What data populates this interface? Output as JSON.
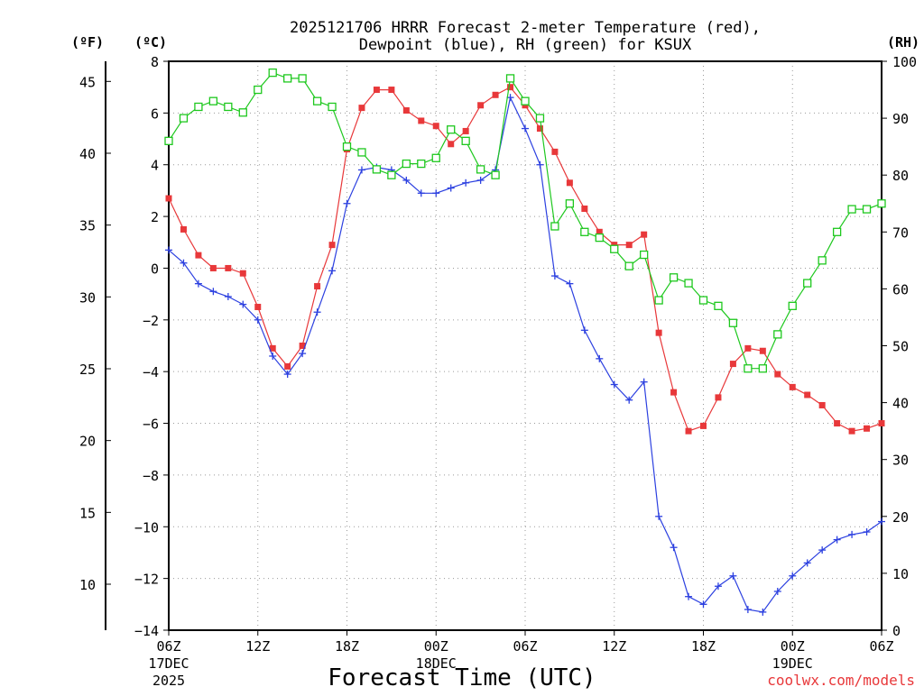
{
  "chart_data": {
    "type": "line",
    "title_line1": "2025121706 HRRR Forecast 2-meter Temperature (red),",
    "title_line2": "Dewpoint (blue), RH (green) for KSUX",
    "xlabel": "Forecast Time (UTC)",
    "left_unit_f": "(ºF)",
    "left_unit_c": "(ºC)",
    "right_unit": "(RH)",
    "credit": "coolwx.com/models",
    "x_hours_range": [
      0,
      48
    ],
    "ylim_c": [
      -14,
      8
    ],
    "ylim_rh": [
      0,
      100
    ],
    "ylim_f": [
      6.8,
      46.4
    ],
    "c_ticks": [
      8,
      6,
      4,
      2,
      0,
      -2,
      -4,
      -6,
      -8,
      -10,
      -12,
      -14
    ],
    "c_tick_labels": [
      "8",
      "6",
      "4",
      "2",
      "0",
      "−2",
      "−4",
      "−6",
      "−8",
      "−10",
      "−12",
      "−14"
    ],
    "f_ticks": [
      45,
      40,
      35,
      30,
      25,
      20,
      15,
      10
    ],
    "f_tick_labels": [
      "45",
      "40",
      "35",
      "30",
      "25",
      "20",
      "15",
      "10"
    ],
    "rh_ticks": [
      100,
      90,
      80,
      70,
      60,
      50,
      40,
      30,
      20,
      10,
      0
    ],
    "rh_tick_labels": [
      "100",
      "90",
      "80",
      "70",
      "60",
      "50",
      "40",
      "30",
      "20",
      "10",
      "0"
    ],
    "x_ticks": [
      {
        "h": 0,
        "label": "06Z",
        "sub1": "17DEC",
        "sub2": "2025"
      },
      {
        "h": 6,
        "label": "12Z",
        "sub1": "",
        "sub2": ""
      },
      {
        "h": 12,
        "label": "18Z",
        "sub1": "",
        "sub2": ""
      },
      {
        "h": 18,
        "label": "00Z",
        "sub1": "18DEC",
        "sub2": ""
      },
      {
        "h": 24,
        "label": "06Z",
        "sub1": "",
        "sub2": ""
      },
      {
        "h": 30,
        "label": "12Z",
        "sub1": "",
        "sub2": ""
      },
      {
        "h": 36,
        "label": "18Z",
        "sub1": "",
        "sub2": ""
      },
      {
        "h": 42,
        "label": "00Z",
        "sub1": "19DEC",
        "sub2": ""
      },
      {
        "h": 48,
        "label": "06Z",
        "sub1": "",
        "sub2": ""
      }
    ],
    "series": [
      {
        "name": "2-meter Temperature",
        "axis": "C",
        "color": "#e8383a",
        "marker": "square",
        "values": [
          2.7,
          1.5,
          0.5,
          0.0,
          0.0,
          -0.2,
          -1.5,
          -3.1,
          -3.8,
          -3.0,
          -0.7,
          0.9,
          4.6,
          6.2,
          6.9,
          6.9,
          6.1,
          5.7,
          5.5,
          4.8,
          5.3,
          6.3,
          6.7,
          7.0,
          6.3,
          5.4,
          4.5,
          3.3,
          2.3,
          1.4,
          0.9,
          0.9,
          1.3,
          -2.5,
          -4.8,
          -6.3,
          -6.1,
          -5.0,
          -3.7,
          -3.1,
          -3.2,
          -4.1,
          -4.6,
          -4.9,
          -5.3,
          -6.0,
          -6.3,
          -6.2,
          -6.0
        ]
      },
      {
        "name": "Dewpoint",
        "axis": "C",
        "color": "#2c40e0",
        "marker": "plus",
        "values": [
          0.7,
          0.2,
          -0.6,
          -0.9,
          -1.1,
          -1.4,
          -2.0,
          -3.4,
          -4.1,
          -3.3,
          -1.7,
          -0.1,
          2.5,
          3.8,
          3.9,
          3.8,
          3.4,
          2.9,
          2.9,
          3.1,
          3.3,
          3.4,
          3.8,
          6.6,
          5.4,
          4.0,
          -0.3,
          -0.6,
          -2.4,
          -3.5,
          -4.5,
          -5.1,
          -4.4,
          -9.6,
          -10.8,
          -12.7,
          -13.0,
          -12.3,
          -11.9,
          -13.2,
          -13.3,
          -12.5,
          -11.9,
          -11.4,
          -10.9,
          -10.5,
          -10.3,
          -10.2,
          -9.8
        ]
      },
      {
        "name": "RH",
        "axis": "RH",
        "color": "#1ec81e",
        "marker": "open-square",
        "values": [
          86,
          90,
          92,
          93,
          92,
          91,
          95,
          98,
          97,
          97,
          93,
          92,
          85,
          84,
          81,
          80,
          82,
          82,
          83,
          88,
          86,
          81,
          80,
          97,
          93,
          90,
          71,
          75,
          70,
          69,
          67,
          64,
          66,
          58,
          62,
          61,
          58,
          57,
          54,
          46,
          46,
          52,
          57,
          61,
          65,
          70,
          74,
          74,
          75
        ]
      }
    ]
  }
}
